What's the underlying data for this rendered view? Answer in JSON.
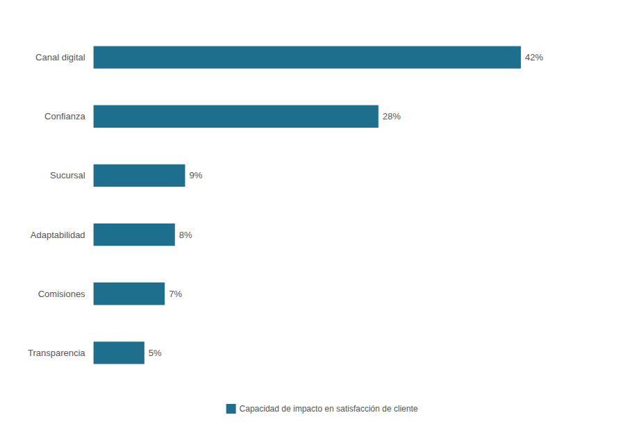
{
  "chart_data": {
    "type": "bar",
    "orientation": "horizontal",
    "categories": [
      "Transparencia",
      "Comisiones",
      "Adaptabilidad",
      "Sucursal",
      "Confianza",
      "Canal digital"
    ],
    "series": [
      {
        "name": "Capacidad de impacto en satisfacción de cliente",
        "color": "#1e6f8e",
        "values": [
          5,
          7,
          8,
          9,
          28,
          42
        ],
        "value_labels": [
          "5%",
          "7%",
          "8%",
          "9%",
          "28%",
          "42%"
        ]
      }
    ],
    "xlim": [
      0,
      50
    ],
    "data_labels": true,
    "tick_labels": "y",
    "grid": false,
    "legend": "bottom"
  }
}
